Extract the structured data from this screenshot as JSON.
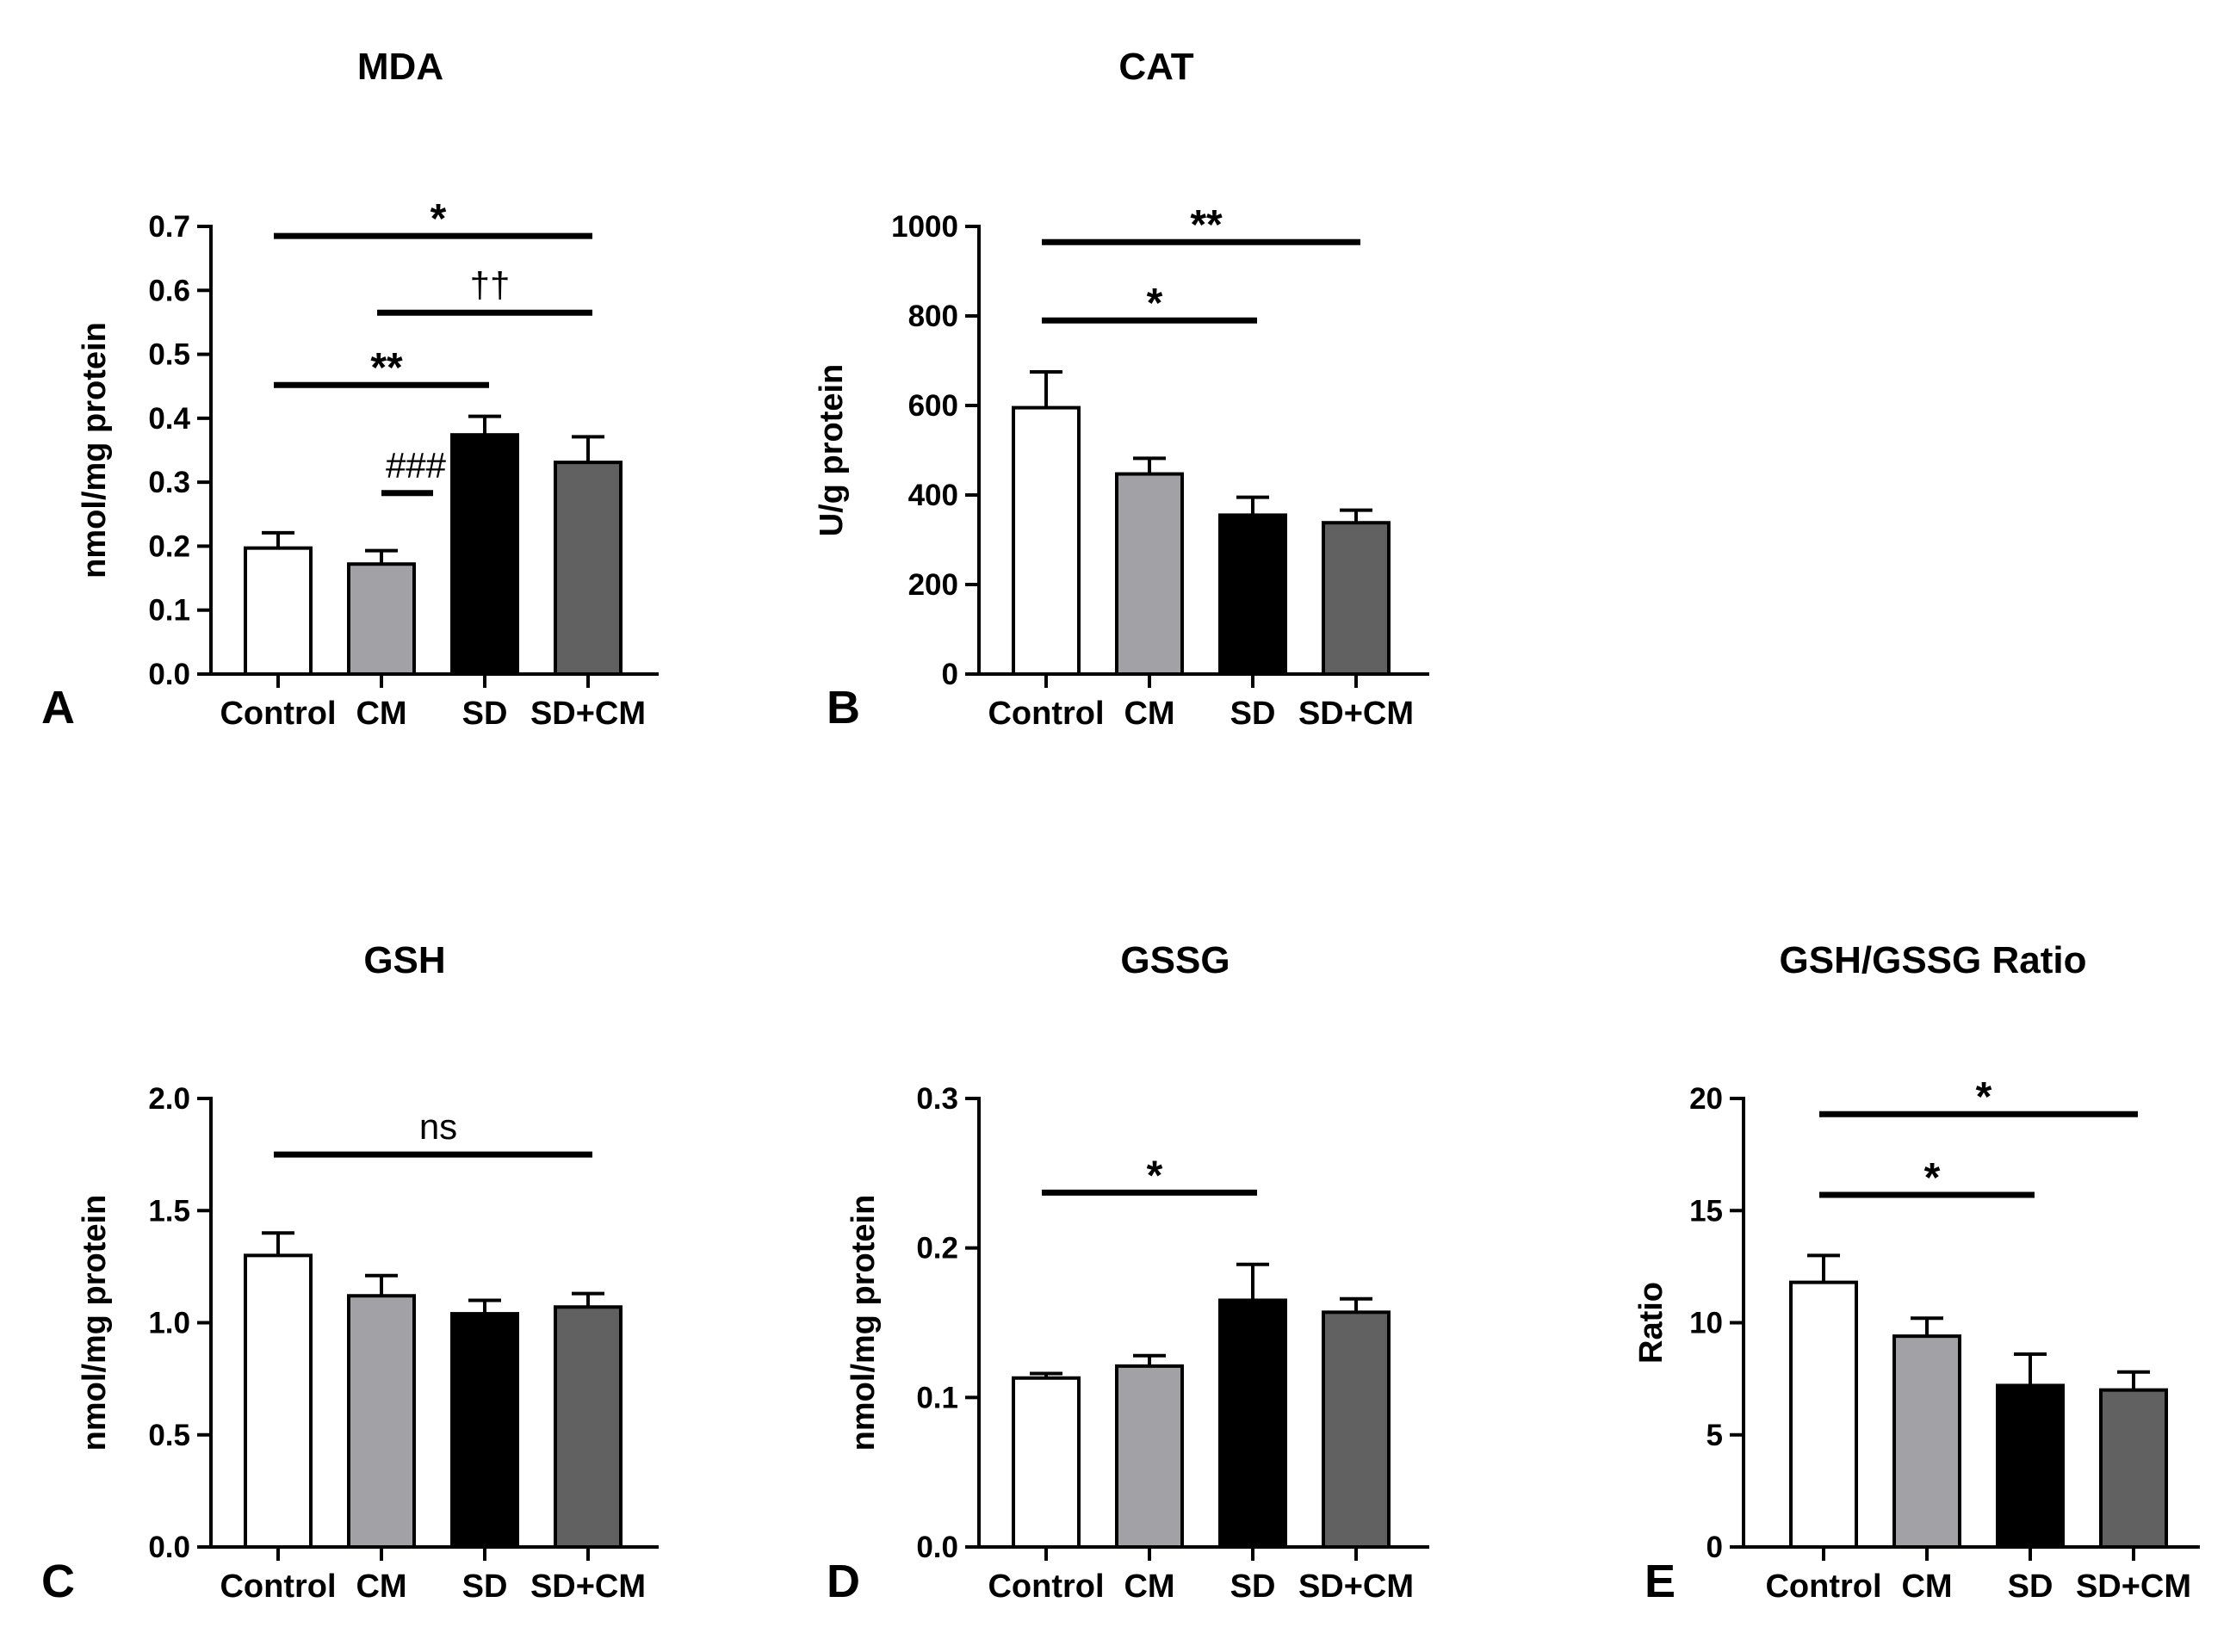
{
  "figure": {
    "colors": {
      "Control": "#ffffff",
      "CM": "#a2a2a6",
      "SD": "#000000",
      "SD+CM": "#616161",
      "axis": "#000000"
    }
  },
  "chart_data": [
    {
      "panel": "A",
      "type": "bar",
      "title": "MDA",
      "ylabel": "nmol/mg protein",
      "xlabel": "",
      "categories": [
        "Control",
        "CM",
        "SD",
        "SD+CM"
      ],
      "values": [
        0.197,
        0.172,
        0.374,
        0.331
      ],
      "errors": [
        0.024,
        0.021,
        0.029,
        0.04
      ],
      "ylim": [
        0,
        0.7
      ],
      "yticks": [
        "0.0",
        "0.1",
        "0.2",
        "0.3",
        "0.4",
        "0.5",
        "0.6",
        "0.7"
      ],
      "grid": false,
      "comparisons": [
        {
          "from": 0,
          "to": 3,
          "label": "*",
          "y": 0.685
        },
        {
          "from": 1,
          "to": 3,
          "label": "††",
          "y": 0.565
        },
        {
          "from": 0,
          "to": 2,
          "label": "**",
          "y": 0.452
        },
        {
          "from": 1,
          "to": 1,
          "label": "###",
          "y": 0.283
        }
      ]
    },
    {
      "panel": "B",
      "type": "bar",
      "title": "CAT",
      "ylabel": "U/g protein",
      "xlabel": "",
      "categories": [
        "Control",
        "CM",
        "SD",
        "SD+CM"
      ],
      "values": [
        595,
        447,
        355,
        338
      ],
      "errors": [
        80,
        35,
        40,
        28
      ],
      "ylim": [
        0,
        1000
      ],
      "yticks": [
        "0",
        "200",
        "400",
        "600",
        "800",
        "1000"
      ],
      "grid": false,
      "comparisons": [
        {
          "from": 0,
          "to": 3,
          "label": "**",
          "y": 965
        },
        {
          "from": 0,
          "to": 2,
          "label": "*",
          "y": 790
        }
      ]
    },
    {
      "panel": "C",
      "type": "bar",
      "title": "GSH",
      "ylabel": "nmol/mg protein",
      "xlabel": "",
      "categories": [
        "Control",
        "CM",
        "SD",
        "SD+CM"
      ],
      "values": [
        1.3,
        1.12,
        1.04,
        1.07
      ],
      "errors": [
        0.1,
        0.09,
        0.06,
        0.06
      ],
      "ylim": [
        0,
        2.0
      ],
      "yticks": [
        "0.0",
        "0.5",
        "1.0",
        "1.5",
        "2.0"
      ],
      "grid": false,
      "comparisons": [
        {
          "from": 0,
          "to": 3,
          "label": "ns",
          "y": 1.75
        }
      ]
    },
    {
      "panel": "D",
      "type": "bar",
      "title": "GSSG",
      "ylabel": "nmol/mg protein",
      "xlabel": "",
      "categories": [
        "Control",
        "CM",
        "SD",
        "SD+CM"
      ],
      "values": [
        0.113,
        0.121,
        0.165,
        0.157
      ],
      "errors": [
        0.003,
        0.007,
        0.024,
        0.009
      ],
      "ylim": [
        0,
        0.3
      ],
      "yticks": [
        "0.0",
        "0.1",
        "0.2",
        "0.3"
      ],
      "grid": false,
      "comparisons": [
        {
          "from": 0,
          "to": 2,
          "label": "*",
          "y": 0.237
        }
      ]
    },
    {
      "panel": "E",
      "type": "bar",
      "title": "GSH/GSSG Ratio",
      "ylabel": "Ratio",
      "xlabel": "",
      "categories": [
        "Control",
        "CM",
        "SD",
        "SD+CM"
      ],
      "values": [
        11.8,
        9.4,
        7.2,
        7.0
      ],
      "errors": [
        1.2,
        0.8,
        1.4,
        0.8
      ],
      "ylim": [
        0,
        20
      ],
      "yticks": [
        "0",
        "5",
        "10",
        "15",
        "20"
      ],
      "grid": false,
      "comparisons": [
        {
          "from": 0,
          "to": 3,
          "label": "*",
          "y": 19.3
        },
        {
          "from": 0,
          "to": 2,
          "label": "*",
          "y": 15.7
        }
      ]
    }
  ]
}
